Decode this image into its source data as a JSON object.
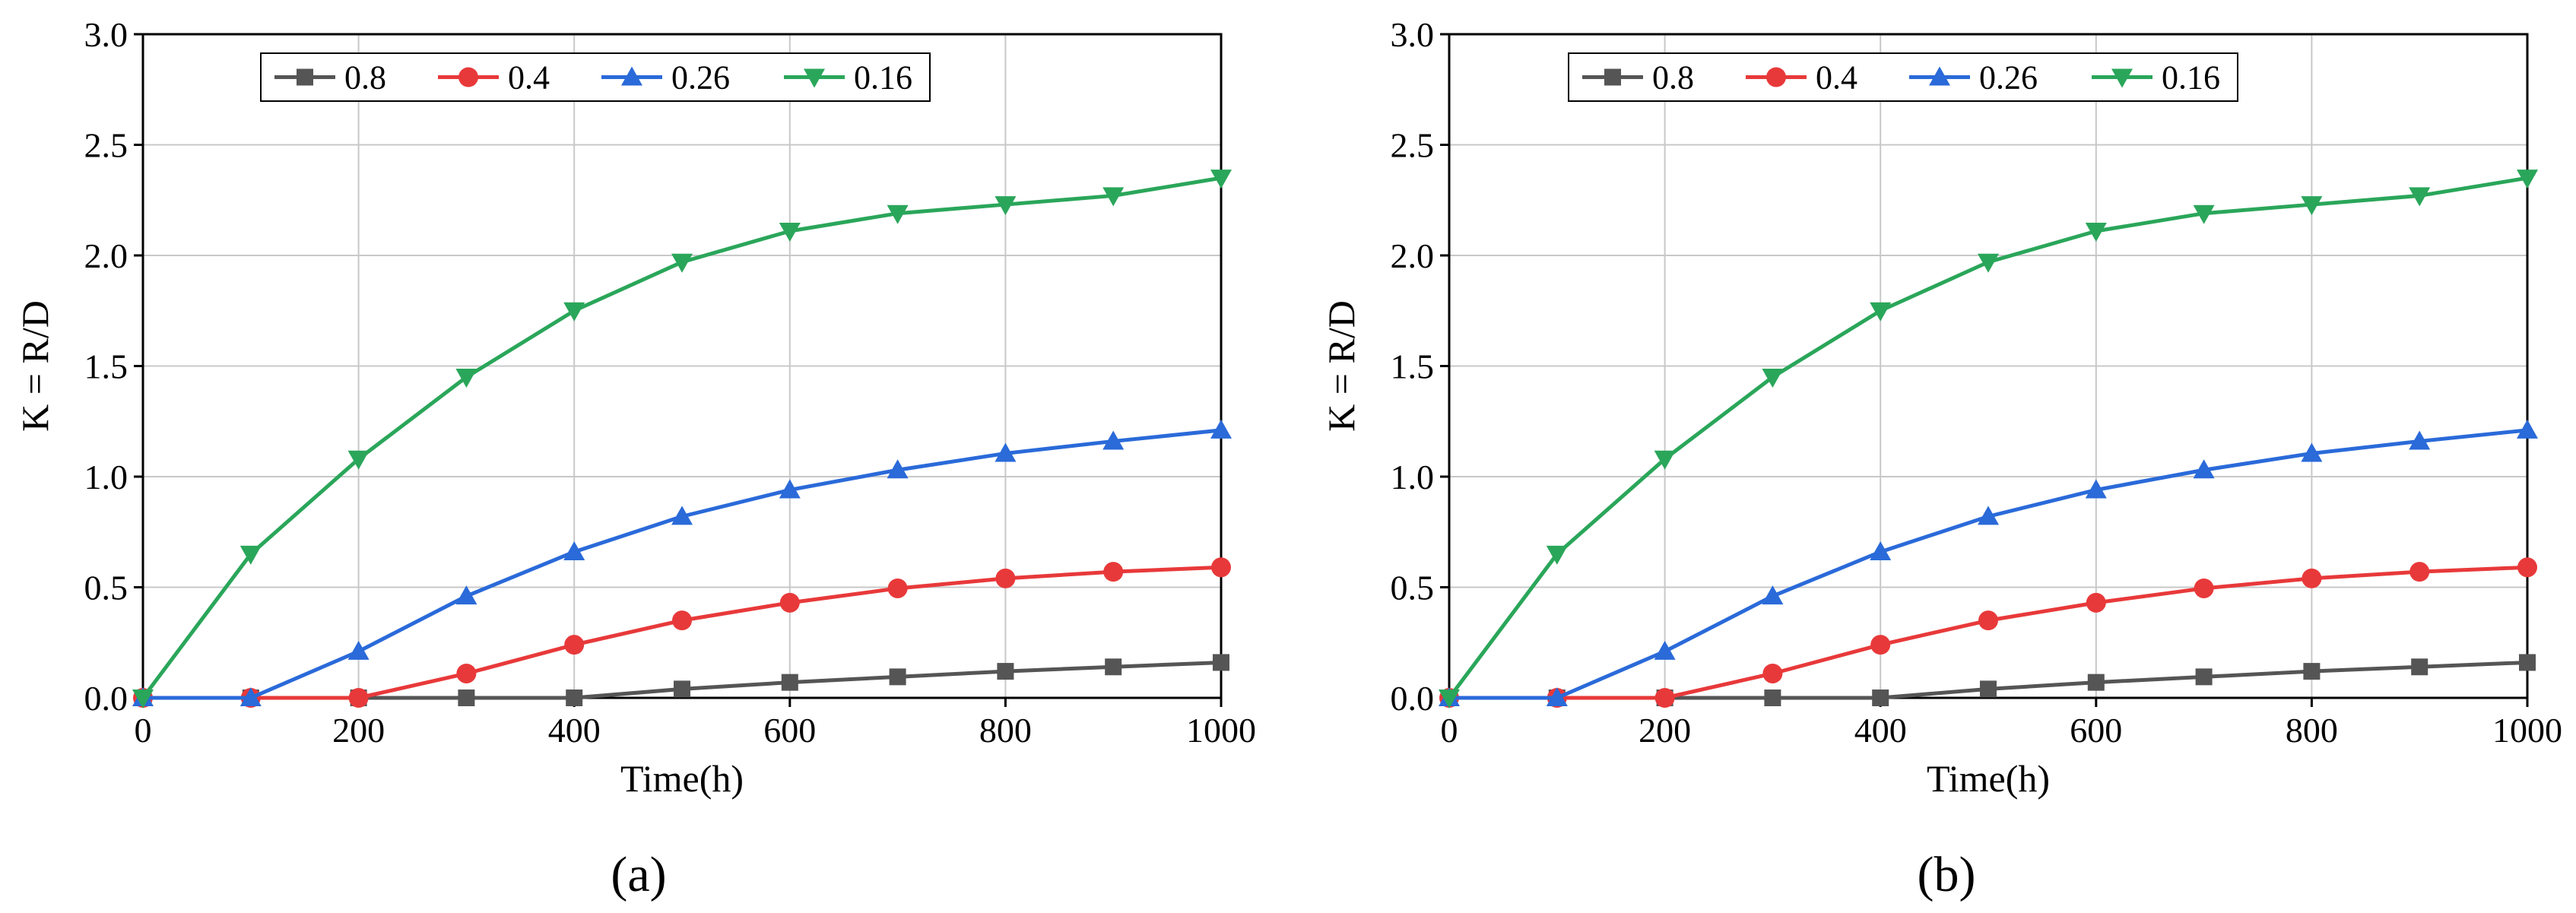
{
  "colors": {
    "s08": "#555555",
    "s04": "#e8393a",
    "s026": "#2a6ad9",
    "s016": "#2aa65a",
    "grid": "#c8c8c8",
    "axis": "#000000"
  },
  "chart_data": [
    {
      "type": "line",
      "panel_label": "(a)",
      "xlabel": "Time(h)",
      "ylabel": "K = R/D",
      "xlim": [
        0,
        1000
      ],
      "ylim": [
        0,
        3.0
      ],
      "xticks": [
        "0",
        "200",
        "400",
        "600",
        "800",
        "1000"
      ],
      "yticks": [
        "0.0",
        "0.5",
        "1.0",
        "1.5",
        "2.0",
        "2.5",
        "3.0"
      ],
      "grid": true,
      "legend_position": "top-left",
      "x": [
        0,
        100,
        200,
        300,
        400,
        500,
        600,
        700,
        800,
        900,
        1000
      ],
      "series": [
        {
          "name": "0.8",
          "marker": "square",
          "color_key": "s08",
          "values": [
            0,
            0,
            0,
            0,
            0,
            0.04,
            0.07,
            0.095,
            0.12,
            0.14,
            0.16
          ]
        },
        {
          "name": "0.4",
          "marker": "circle",
          "color_key": "s04",
          "values": [
            0,
            0,
            0,
            0.11,
            0.24,
            0.35,
            0.43,
            0.495,
            0.54,
            0.57,
            0.59
          ]
        },
        {
          "name": "0.26",
          "marker": "triangle-up",
          "color_key": "s026",
          "values": [
            0,
            0,
            0.21,
            0.46,
            0.66,
            0.82,
            0.94,
            1.03,
            1.105,
            1.16,
            1.21
          ]
        },
        {
          "name": "0.16",
          "marker": "triangle-down",
          "color_key": "s016",
          "values": [
            0,
            0.65,
            1.08,
            1.45,
            1.75,
            1.97,
            2.11,
            2.19,
            2.23,
            2.27,
            2.35
          ]
        }
      ]
    },
    {
      "type": "line",
      "panel_label": "(b)",
      "xlabel": "Time(h)",
      "ylabel": "K = R/D",
      "xlim": [
        0,
        1000
      ],
      "ylim": [
        0,
        3.0
      ],
      "xticks": [
        "0",
        "200",
        "400",
        "600",
        "800",
        "1000"
      ],
      "yticks": [
        "0.0",
        "0.5",
        "1.0",
        "1.5",
        "2.0",
        "2.5",
        "3.0"
      ],
      "grid": true,
      "legend_position": "top-left",
      "x": [
        0,
        100,
        200,
        300,
        400,
        500,
        600,
        700,
        800,
        900,
        1000
      ],
      "series": [
        {
          "name": "0.8",
          "marker": "square",
          "color_key": "s08",
          "values": [
            0,
            0,
            0,
            0,
            0,
            0.04,
            0.07,
            0.095,
            0.12,
            0.14,
            0.16
          ]
        },
        {
          "name": "0.4",
          "marker": "circle",
          "color_key": "s04",
          "values": [
            0,
            0,
            0,
            0.11,
            0.24,
            0.35,
            0.43,
            0.495,
            0.54,
            0.57,
            0.59
          ]
        },
        {
          "name": "0.26",
          "marker": "triangle-up",
          "color_key": "s026",
          "values": [
            0,
            0,
            0.21,
            0.46,
            0.66,
            0.82,
            0.94,
            1.03,
            1.105,
            1.16,
            1.21
          ]
        },
        {
          "name": "0.16",
          "marker": "triangle-down",
          "color_key": "s016",
          "values": [
            0,
            0.65,
            1.08,
            1.45,
            1.75,
            1.97,
            2.11,
            2.19,
            2.23,
            2.27,
            2.35
          ]
        }
      ]
    }
  ]
}
